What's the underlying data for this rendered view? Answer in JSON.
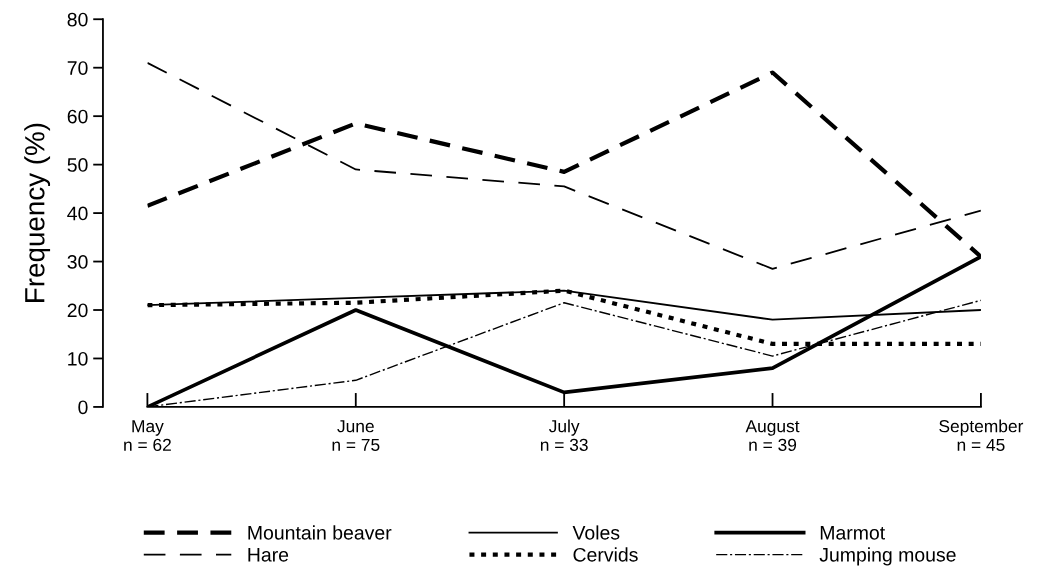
{
  "chart_data": {
    "type": "line",
    "ylabel": "Frequency (%)",
    "categories": [
      "May\nn = 62",
      "June\nn = 75",
      "July\nn = 33",
      "August\nn = 39",
      "September\nn = 45"
    ],
    "ylim": [
      0,
      80
    ],
    "yticks": [
      0,
      10,
      20,
      30,
      40,
      50,
      60,
      70,
      80
    ],
    "grid": false,
    "legend": "bottom",
    "marker": "none",
    "series": [
      {
        "name": "Mountain beaver",
        "color": "#000000",
        "line_style": "dashed",
        "values": [
          41.5,
          58.5,
          48.5,
          69,
          31
        ]
      },
      {
        "name": "Hare",
        "color": "#000000",
        "line_style": "dashed",
        "values": [
          71,
          49,
          45.5,
          28.5,
          40.5
        ]
      },
      {
        "name": "Voles",
        "color": "#000000",
        "line_style": "solid",
        "values": [
          21,
          22.5,
          24,
          18,
          20
        ]
      },
      {
        "name": "Cervids",
        "color": "#000000",
        "line_style": "dotted",
        "values": [
          21,
          21.5,
          24,
          13,
          13
        ]
      },
      {
        "name": "Marmot",
        "color": "#000000",
        "line_style": "solid",
        "values": [
          0,
          20,
          3,
          8,
          31
        ]
      },
      {
        "name": "Jumping mouse",
        "color": "#000000",
        "line_style": "dashdot",
        "values": [
          0,
          5.5,
          21.5,
          10.5,
          22
        ]
      }
    ]
  }
}
